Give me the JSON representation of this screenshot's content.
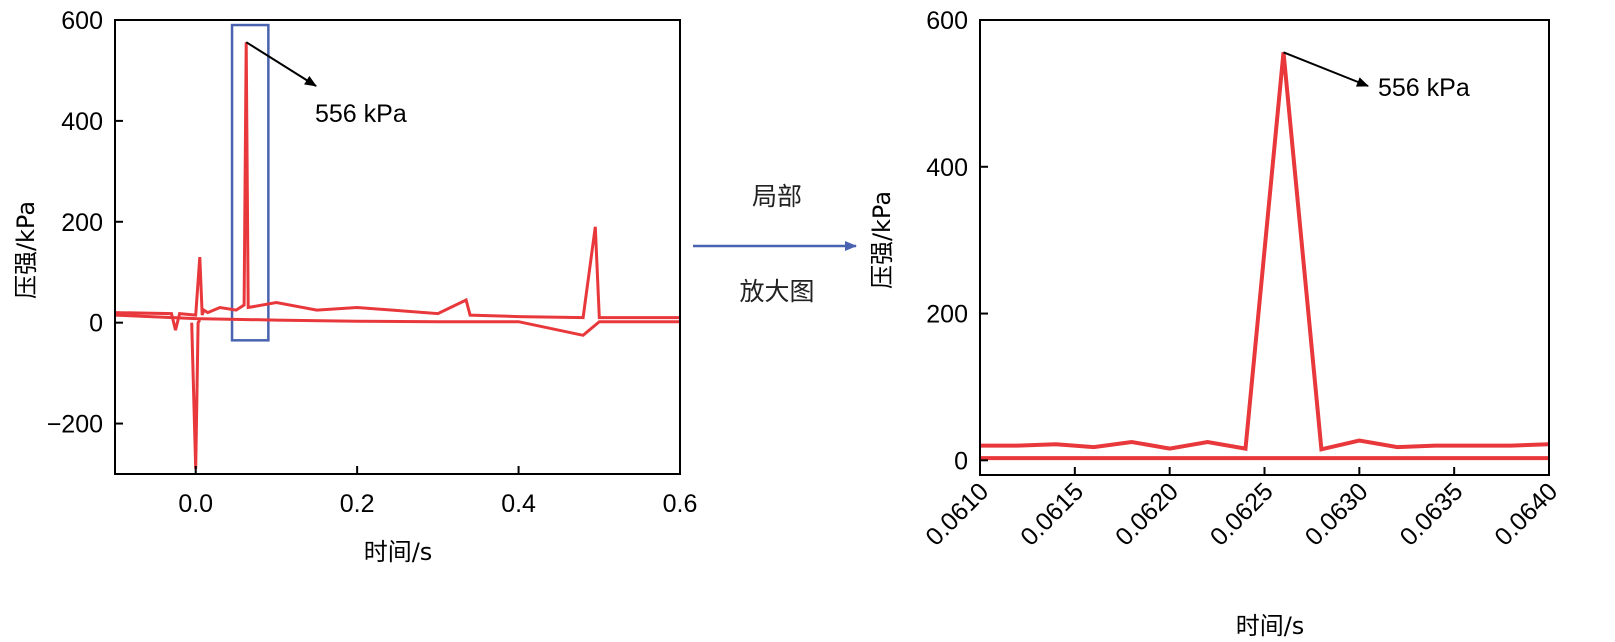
{
  "colors": {
    "series": "#e8383b",
    "highlight_box": "#4a63b0",
    "middle_arrow": "#4a63b0",
    "axis": "#000000"
  },
  "middle": {
    "label_top": "局部",
    "label_bottom": "放大图"
  },
  "chart_data": [
    {
      "type": "line",
      "xlabel": "时间/s",
      "ylabel": "压强/kPa",
      "xlim": [
        -0.1,
        0.6
      ],
      "ylim": [
        -300,
        600
      ],
      "x_ticks": [
        0.0,
        0.2,
        0.4,
        0.6
      ],
      "x_tick_labels": [
        "0.0",
        "0.2",
        "0.4",
        "0.6"
      ],
      "y_ticks": [
        -200,
        0,
        200,
        400,
        600
      ],
      "y_tick_labels": [
        "−200",
        "0",
        "200",
        "400",
        "600"
      ],
      "highlight_region": {
        "x": [
          0.045,
          0.09
        ],
        "y": [
          -35,
          590
        ]
      },
      "annotation": {
        "text": "556 kPa",
        "point": [
          0.0626,
          556
        ]
      },
      "series": [
        {
          "x": [
            -0.1,
            -0.03,
            -0.025,
            -0.02,
            0.0,
            0.005,
            0.008,
            0.01,
            0.015,
            0.03,
            0.05,
            0.06,
            0.0626,
            0.065,
            0.1,
            0.15,
            0.2,
            0.3,
            0.335,
            0.34,
            0.4,
            0.48,
            0.495,
            0.5,
            0.6
          ],
          "y": [
            20,
            18,
            -15,
            18,
            15,
            130,
            15,
            25,
            20,
            30,
            25,
            35,
            556,
            30,
            40,
            25,
            30,
            18,
            45,
            15,
            12,
            10,
            190,
            10,
            10
          ]
        },
        {
          "x": [
            -0.1,
            0.0,
            0.1,
            0.2,
            0.3,
            0.4,
            0.48,
            0.5,
            0.6
          ],
          "y": [
            15,
            8,
            5,
            3,
            2,
            2,
            -25,
            2,
            2
          ]
        },
        {
          "x": [
            -0.005,
            0.0,
            0.003,
            0.005
          ],
          "y": [
            0,
            -290,
            0,
            5
          ]
        }
      ]
    },
    {
      "type": "line",
      "xlabel": "时间/s",
      "ylabel": "压强/kPa",
      "xlim": [
        0.061,
        0.064
      ],
      "ylim": [
        -20,
        600
      ],
      "x_ticks": [
        0.061,
        0.0615,
        0.062,
        0.0625,
        0.063,
        0.0635,
        0.064
      ],
      "x_tick_labels": [
        "0.0610",
        "0.0615",
        "0.0620",
        "0.0625",
        "0.0630",
        "0.0635",
        "0.0640"
      ],
      "y_ticks": [
        0,
        200,
        400,
        600
      ],
      "y_tick_labels": [
        "0",
        "200",
        "400",
        "600"
      ],
      "annotation": {
        "text": "556 kPa",
        "point": [
          0.0626,
          556
        ]
      },
      "series": [
        {
          "x": [
            0.061,
            0.0612,
            0.0614,
            0.0616,
            0.0618,
            0.062,
            0.0622,
            0.0624,
            0.0626,
            0.0628,
            0.063,
            0.0632,
            0.0634,
            0.0636,
            0.0638,
            0.064
          ],
          "y": [
            20,
            20,
            22,
            18,
            25,
            16,
            25,
            16,
            556,
            15,
            27,
            18,
            20,
            20,
            20,
            22
          ]
        },
        {
          "x": [
            0.061,
            0.064
          ],
          "y": [
            3,
            3
          ]
        }
      ]
    }
  ]
}
